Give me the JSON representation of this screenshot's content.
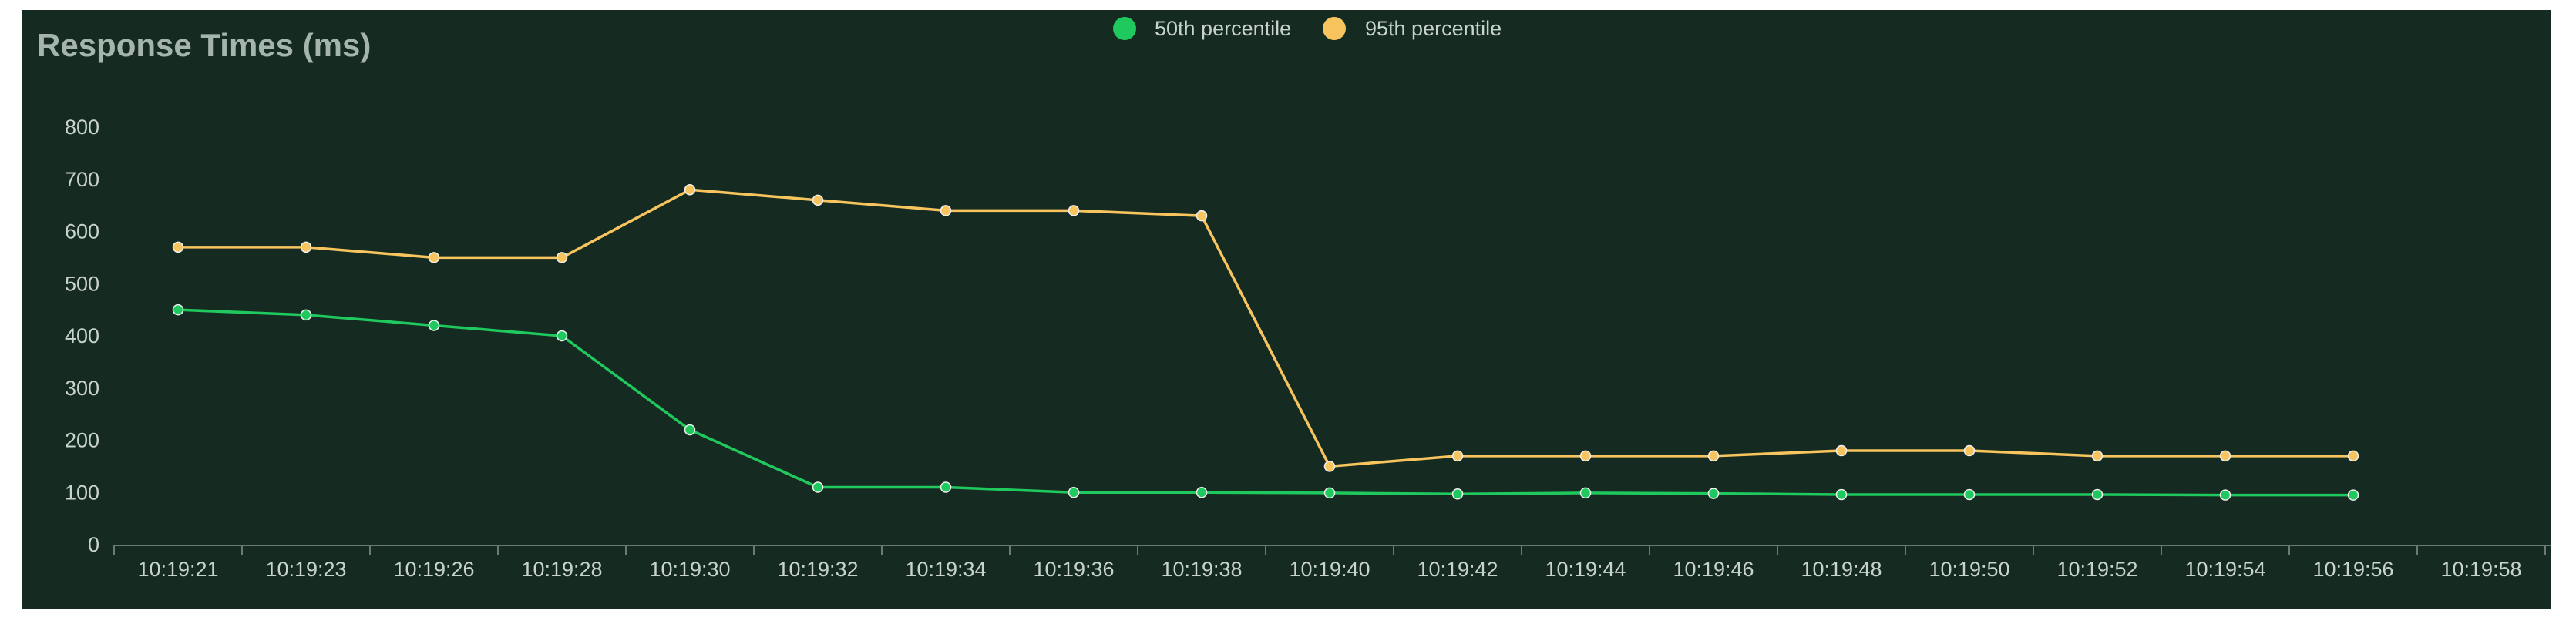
{
  "chart_data": {
    "type": "line",
    "title": "Response Times (ms)",
    "xlabel": "",
    "ylabel": "",
    "ylim": [
      0,
      800
    ],
    "yticks": [
      0,
      100,
      200,
      300,
      400,
      500,
      600,
      700,
      800
    ],
    "categories": [
      "10:19:21",
      "10:19:23",
      "10:19:26",
      "10:19:28",
      "10:19:30",
      "10:19:32",
      "10:19:34",
      "10:19:36",
      "10:19:38",
      "10:19:40",
      "10:19:42",
      "10:19:44",
      "10:19:46",
      "10:19:48",
      "10:19:50",
      "10:19:52",
      "10:19:54",
      "10:19:56",
      "10:19:58"
    ],
    "series": [
      {
        "name": "50th percentile",
        "color": "#1fc95d",
        "values": [
          450,
          440,
          420,
          400,
          220,
          110,
          110,
          100,
          100,
          99,
          97,
          99,
          98,
          96,
          96,
          96,
          95,
          95,
          null
        ]
      },
      {
        "name": "95th percentile",
        "color": "#f7c45e",
        "values": [
          570,
          570,
          550,
          550,
          680,
          660,
          640,
          640,
          630,
          150,
          170,
          170,
          170,
          180,
          180,
          170,
          170,
          170,
          null
        ]
      }
    ],
    "legend": "top-center",
    "grid": false
  }
}
